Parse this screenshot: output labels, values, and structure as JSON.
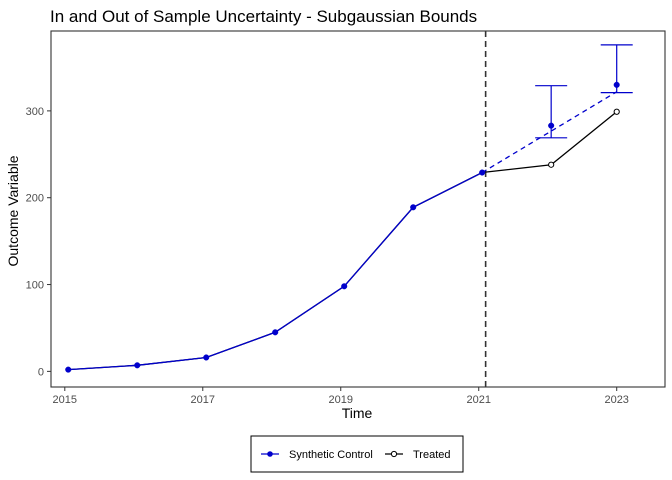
{
  "chart_data": {
    "type": "line",
    "title": "In and Out of Sample Uncertainty - Subgaussian Bounds",
    "xlabel": "Time",
    "ylabel": "Outcome Variable",
    "xlim": [
      2014.8,
      2023.7
    ],
    "ylim": [
      -18,
      392
    ],
    "x_ticks": [
      2015,
      2017,
      2019,
      2021,
      2023
    ],
    "y_ticks": [
      0,
      100,
      200,
      300
    ],
    "grid": false,
    "treatment_line_x": 2021.1,
    "series": [
      {
        "name": "Synthetic Control",
        "color": "#0000cc",
        "marker": "filled-circle",
        "x": [
          2015.05,
          2016.05,
          2017.05,
          2018.05,
          2019.05,
          2020.05,
          2021.05,
          2022.05,
          2023.0
        ],
        "values": [
          2,
          7,
          16,
          45,
          98,
          189,
          229,
          283,
          330
        ]
      },
      {
        "name": "Treated",
        "color": "#000000",
        "marker": "open-circle",
        "x": [
          2015.05,
          2016.05,
          2017.05,
          2018.05,
          2019.05,
          2020.05,
          2021.05,
          2022.05,
          2023.0
        ],
        "values": [
          2,
          7,
          16,
          45,
          98,
          189,
          229,
          238,
          299
        ]
      }
    ],
    "bounds": {
      "x": [
        2022.05,
        2023.0
      ],
      "lower": [
        269,
        321
      ],
      "upper": [
        329,
        376
      ]
    },
    "dashed_series": {
      "x": [
        2021.05,
        2023.0
      ],
      "values": [
        229,
        322
      ]
    },
    "legend": {
      "position": "bottom",
      "entries": [
        "Synthetic Control",
        "Treated"
      ]
    }
  }
}
